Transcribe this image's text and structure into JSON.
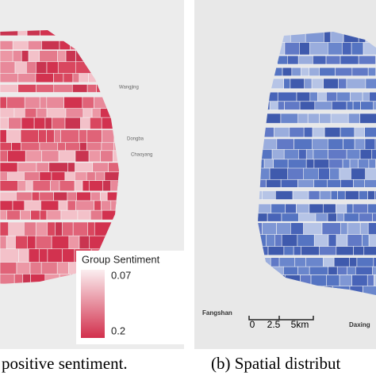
{
  "left_panel": {
    "caption": "positive sentiment.",
    "legend": {
      "title": "Group Sentiment",
      "ticks": [
        0.07,
        0.2
      ]
    },
    "place_labels": [
      "Dongba",
      "Chaoyang",
      "Wangjing"
    ]
  },
  "right_panel": {
    "caption": "(b) Spatial distribut",
    "scale_bar": [
      "0",
      "2.5",
      "5km"
    ],
    "place_labels": [
      "Fangshan",
      "Daxing"
    ]
  }
}
